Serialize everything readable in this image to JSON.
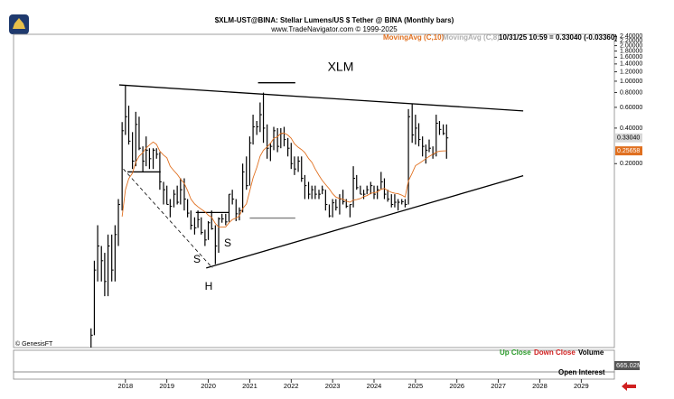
{
  "chart_data": {
    "type": "ohlc",
    "title": "$XLM-UST@BINA:  Stellar Lumens/US $ Tether @ BINA  (Monthly bars)",
    "subtitle": "www.TradeNavigator.com © 1999-2025",
    "indicators": [
      {
        "label": "MovingAvg (C,10)",
        "color": "#e07020"
      },
      {
        "label": "MovingAvg (C,8)",
        "color": "#b0b0b0"
      }
    ],
    "quote": "10/31/25 10:59 = 0.33040 (-0.03360)",
    "symbol": "XLM",
    "pattern_labels": [
      "S",
      "H",
      "S"
    ],
    "credit": "© GenesisFT",
    "volume_legend": [
      "Up Close",
      "Down Close",
      "Volume"
    ],
    "volume_last": {
      "value": 665020000,
      "label": "665.02M"
    },
    "open_interest_label": "Open Interest",
    "log_scale": true,
    "color": "#000000",
    "ma_color": "#e07020",
    "xlim": [
      2015.3,
      2029.8
    ],
    "xticks": [
      2018,
      2019,
      2020,
      2021,
      2022,
      2023,
      2024,
      2025,
      2026,
      2027,
      2028,
      2029
    ],
    "ylim": [
      0.0055,
      2.5
    ],
    "yticks": [
      {
        "value": 2.4,
        "label": "2.40000"
      },
      {
        "value": 2.2,
        "label": "2.20000"
      },
      {
        "value": 2.0,
        "label": "2.00000"
      },
      {
        "value": 1.8,
        "label": "1.80000"
      },
      {
        "value": 1.6,
        "label": "1.60000"
      },
      {
        "value": 1.4,
        "label": "1.40000"
      },
      {
        "value": 1.2,
        "label": "1.20000"
      },
      {
        "value": 1.0,
        "label": "1.00000"
      },
      {
        "value": 0.8,
        "label": "0.80000"
      },
      {
        "value": 0.6,
        "label": "0.60000"
      },
      {
        "value": 0.4,
        "label": "0.40000"
      },
      {
        "value": 0.2,
        "label": "0.20000"
      }
    ],
    "x": [
      2017.17,
      2017.25,
      2017.33,
      2017.42,
      2017.5,
      2017.58,
      2017.67,
      2017.75,
      2017.83,
      2017.92,
      2018,
      2018.08,
      2018.17,
      2018.25,
      2018.33,
      2018.42,
      2018.5,
      2018.58,
      2018.67,
      2018.75,
      2018.83,
      2018.92,
      2019,
      2019.08,
      2019.17,
      2019.25,
      2019.33,
      2019.42,
      2019.5,
      2019.58,
      2019.67,
      2019.75,
      2019.83,
      2019.92,
      2020,
      2020.08,
      2020.17,
      2020.25,
      2020.33,
      2020.42,
      2020.5,
      2020.58,
      2020.67,
      2020.75,
      2020.83,
      2020.92,
      2021,
      2021.08,
      2021.17,
      2021.25,
      2021.33,
      2021.42,
      2021.5,
      2021.58,
      2021.67,
      2021.75,
      2021.83,
      2021.92,
      2022,
      2022.08,
      2022.17,
      2022.25,
      2022.33,
      2022.42,
      2022.5,
      2022.58,
      2022.67,
      2022.75,
      2022.83,
      2022.92,
      2023,
      2023.08,
      2023.17,
      2023.25,
      2023.33,
      2023.42,
      2023.5,
      2023.58,
      2023.67,
      2023.75,
      2023.83,
      2023.92,
      2024,
      2024.08,
      2024.17,
      2024.25,
      2024.33,
      2024.42,
      2024.5,
      2024.58,
      2024.67,
      2024.75,
      2024.83,
      2024.92,
      2025,
      2025.08,
      2025.17,
      2025.25,
      2025.33,
      2025.42,
      2025.5,
      2025.58,
      2025.67,
      2025.75
    ],
    "high": [
      0.008,
      0.03,
      0.06,
      0.04,
      0.035,
      0.05,
      0.05,
      0.06,
      0.1,
      0.45,
      0.93,
      0.62,
      0.37,
      0.55,
      0.5,
      0.28,
      0.34,
      0.27,
      0.27,
      0.27,
      0.25,
      0.14,
      0.13,
      0.1,
      0.12,
      0.13,
      0.15,
      0.15,
      0.1,
      0.08,
      0.07,
      0.08,
      0.07,
      0.055,
      0.065,
      0.08,
      0.06,
      0.07,
      0.075,
      0.075,
      0.11,
      0.12,
      0.1,
      0.085,
      0.2,
      0.23,
      0.34,
      0.52,
      0.46,
      0.66,
      0.8,
      0.43,
      0.3,
      0.41,
      0.4,
      0.4,
      0.41,
      0.33,
      0.3,
      0.23,
      0.23,
      0.23,
      0.16,
      0.14,
      0.13,
      0.13,
      0.12,
      0.13,
      0.12,
      0.09,
      0.1,
      0.1,
      0.11,
      0.12,
      0.1,
      0.09,
      0.19,
      0.16,
      0.13,
      0.12,
      0.13,
      0.14,
      0.13,
      0.13,
      0.17,
      0.15,
      0.12,
      0.11,
      0.11,
      0.1,
      0.1,
      0.1,
      0.58,
      0.64,
      0.52,
      0.44,
      0.34,
      0.29,
      0.32,
      0.28,
      0.52,
      0.46,
      0.43,
      0.43
    ],
    "low": [
      0.0055,
      0.007,
      0.02,
      0.02,
      0.015,
      0.015,
      0.02,
      0.02,
      0.04,
      0.08,
      0.35,
      0.29,
      0.18,
      0.19,
      0.26,
      0.17,
      0.19,
      0.18,
      0.18,
      0.22,
      0.12,
      0.09,
      0.09,
      0.07,
      0.085,
      0.09,
      0.09,
      0.08,
      0.07,
      0.055,
      0.05,
      0.057,
      0.05,
      0.04,
      0.045,
      0.055,
      0.028,
      0.035,
      0.063,
      0.06,
      0.064,
      0.09,
      0.065,
      0.066,
      0.077,
      0.12,
      0.13,
      0.29,
      0.35,
      0.37,
      0.3,
      0.22,
      0.21,
      0.26,
      0.25,
      0.27,
      0.28,
      0.23,
      0.18,
      0.16,
      0.17,
      0.14,
      0.1,
      0.1,
      0.1,
      0.1,
      0.1,
      0.11,
      0.08,
      0.07,
      0.07,
      0.08,
      0.074,
      0.09,
      0.084,
      0.07,
      0.085,
      0.12,
      0.11,
      0.1,
      0.11,
      0.11,
      0.1,
      0.1,
      0.12,
      0.1,
      0.095,
      0.085,
      0.085,
      0.08,
      0.09,
      0.085,
      0.09,
      0.3,
      0.29,
      0.28,
      0.23,
      0.2,
      0.25,
      0.22,
      0.23,
      0.35,
      0.35,
      0.22
    ],
    "close": [
      0.007,
      0.025,
      0.04,
      0.03,
      0.02,
      0.04,
      0.025,
      0.05,
      0.09,
      0.38,
      0.5,
      0.31,
      0.21,
      0.43,
      0.27,
      0.21,
      0.26,
      0.22,
      0.26,
      0.24,
      0.14,
      0.12,
      0.09,
      0.087,
      0.11,
      0.094,
      0.12,
      0.1,
      0.076,
      0.06,
      0.057,
      0.067,
      0.052,
      0.045,
      0.063,
      0.056,
      0.04,
      0.068,
      0.068,
      0.064,
      0.11,
      0.1,
      0.075,
      0.08,
      0.17,
      0.13,
      0.3,
      0.41,
      0.41,
      0.52,
      0.4,
      0.27,
      0.28,
      0.38,
      0.28,
      0.36,
      0.32,
      0.27,
      0.2,
      0.18,
      0.21,
      0.15,
      0.13,
      0.11,
      0.12,
      0.11,
      0.11,
      0.12,
      0.09,
      0.072,
      0.093,
      0.085,
      0.1,
      0.095,
      0.087,
      0.09,
      0.15,
      0.125,
      0.11,
      0.11,
      0.12,
      0.13,
      0.11,
      0.12,
      0.14,
      0.11,
      0.1,
      0.09,
      0.094,
      0.094,
      0.095,
      0.09,
      0.5,
      0.35,
      0.4,
      0.32,
      0.28,
      0.26,
      0.27,
      0.24,
      0.44,
      0.39,
      0.36,
      0.3304
    ],
    "close_last_label": "0.33040",
    "ma10": [
      null,
      null,
      null,
      null,
      null,
      null,
      null,
      null,
      null,
      0.071,
      0.12,
      0.149,
      0.166,
      0.206,
      0.231,
      0.248,
      0.271,
      0.288,
      0.305,
      0.291,
      0.255,
      0.236,
      0.224,
      0.19,
      0.174,
      0.162,
      0.148,
      0.136,
      0.118,
      0.1,
      0.091,
      0.086,
      0.082,
      0.078,
      0.073,
      0.07,
      0.062,
      0.058,
      0.058,
      0.058,
      0.063,
      0.067,
      0.069,
      0.072,
      0.083,
      0.091,
      0.117,
      0.151,
      0.185,
      0.231,
      0.26,
      0.277,
      0.297,
      0.327,
      0.338,
      0.361,
      0.363,
      0.349,
      0.328,
      0.294,
      0.275,
      0.263,
      0.248,
      0.221,
      0.205,
      0.18,
      0.159,
      0.144,
      0.133,
      0.122,
      0.111,
      0.104,
      0.101,
      0.1,
      0.096,
      0.094,
      0.098,
      0.099,
      0.101,
      0.105,
      0.107,
      0.112,
      0.113,
      0.115,
      0.121,
      0.123,
      0.118,
      0.114,
      0.112,
      0.111,
      0.108,
      0.104,
      0.143,
      0.166,
      0.192,
      0.2,
      0.21,
      0.22,
      0.23,
      0.24,
      0.25,
      0.255,
      0.256,
      0.25658
    ],
    "ma_last_label": "0.25658",
    "trendlines": [
      {
        "x": [
          2017.85,
          2027.6
        ],
        "y": [
          0.93,
          0.56
        ],
        "color": "#000000",
        "dashed": false
      },
      {
        "x": [
          2019.95,
          2027.6
        ],
        "y": [
          0.026,
          0.158
        ],
        "color": "#000000",
        "dashed": false
      },
      {
        "x": [
          2017.95,
          2020.1
        ],
        "y": [
          0.18,
          0.026
        ],
        "color": "#000000",
        "dashed": true
      },
      {
        "x": [
          2018.05,
          2018.85
        ],
        "y": [
          0.17,
          0.17
        ],
        "color": "#000000",
        "dashed": false
      },
      {
        "x": [
          2019.7,
          2020.5
        ],
        "y": [
          0.077,
          0.077
        ],
        "color": "#000000",
        "dashed": false
      },
      {
        "x": [
          2021.2,
          2022.1
        ],
        "y": [
          0.97,
          0.97
        ],
        "color": "#000000",
        "dashed": false
      },
      {
        "x": [
          2021.0,
          2022.1
        ],
        "y": [
          0.069,
          0.069
        ],
        "color": "#808080",
        "dashed": false
      }
    ]
  }
}
